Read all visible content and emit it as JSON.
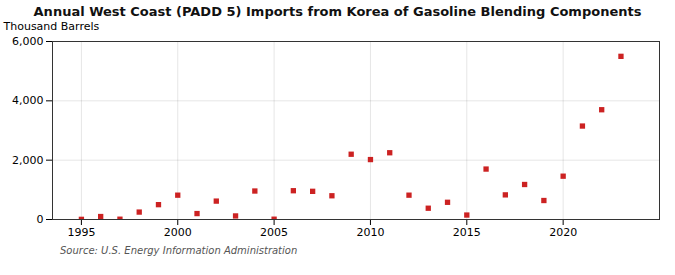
{
  "chart_data": {
    "type": "scatter",
    "title": "Annual West Coast (PADD 5) Imports from Korea of Gasoline Blending Components",
    "ylabel": "Thousand Barrels",
    "source": "Source: U.S. Energy Information Administration",
    "x": [
      1995,
      1996,
      1997,
      1998,
      1999,
      2000,
      2001,
      2002,
      2003,
      2004,
      2005,
      2006,
      2007,
      2008,
      2009,
      2010,
      2011,
      2012,
      2013,
      2014,
      2015,
      2016,
      2017,
      2018,
      2019,
      2020,
      2021,
      2022,
      2023
    ],
    "values": [
      5,
      100,
      10,
      250,
      500,
      820,
      200,
      620,
      120,
      960,
      10,
      970,
      950,
      800,
      2200,
      2020,
      2250,
      820,
      380,
      580,
      150,
      1700,
      830,
      1180,
      640,
      1460,
      3150,
      3700,
      5500
    ],
    "color": "#cc2222",
    "marker": "square",
    "xlim": [
      1993.5,
      2025
    ],
    "xticks": [
      1995,
      2000,
      2005,
      2010,
      2015,
      2020
    ],
    "ylim": [
      0,
      6000
    ],
    "yticks": [
      0,
      {
        "value": 2000,
        "label": "2,000"
      },
      {
        "value": 4000,
        "label": "4,000"
      },
      {
        "value": 6000,
        "label": "6,000"
      }
    ],
    "grid": true
  }
}
